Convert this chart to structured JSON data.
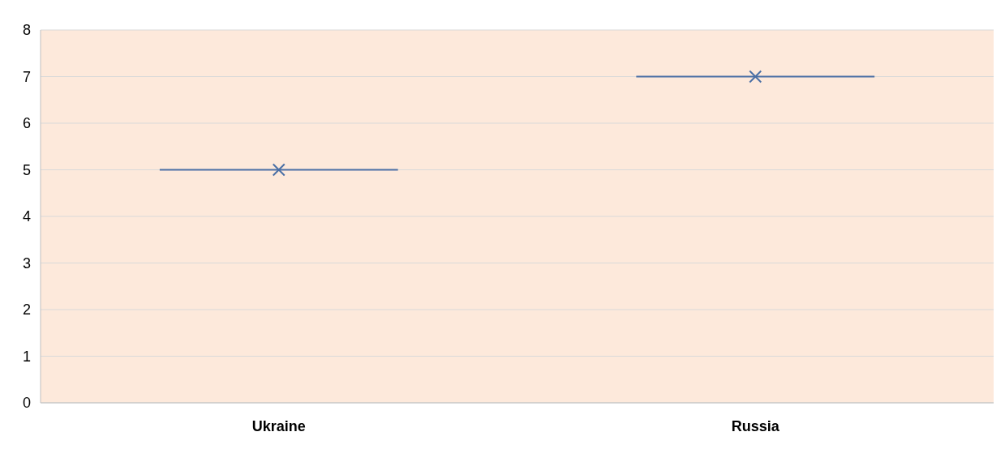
{
  "chart_data": {
    "type": "box",
    "categories": [
      "Ukraine",
      "Russia"
    ],
    "boxes": [
      {
        "low": 5,
        "q1": 5,
        "median": 5,
        "q3": 5,
        "high": 5,
        "mean": 5
      },
      {
        "low": 7,
        "q1": 7,
        "median": 7,
        "q3": 7,
        "high": 7,
        "mean": 7
      }
    ],
    "color": "#4a6fa5",
    "ylim": [
      0,
      8
    ],
    "yticks": [
      0,
      1,
      2,
      3,
      4,
      5,
      6,
      7,
      8
    ],
    "grid": "y"
  }
}
